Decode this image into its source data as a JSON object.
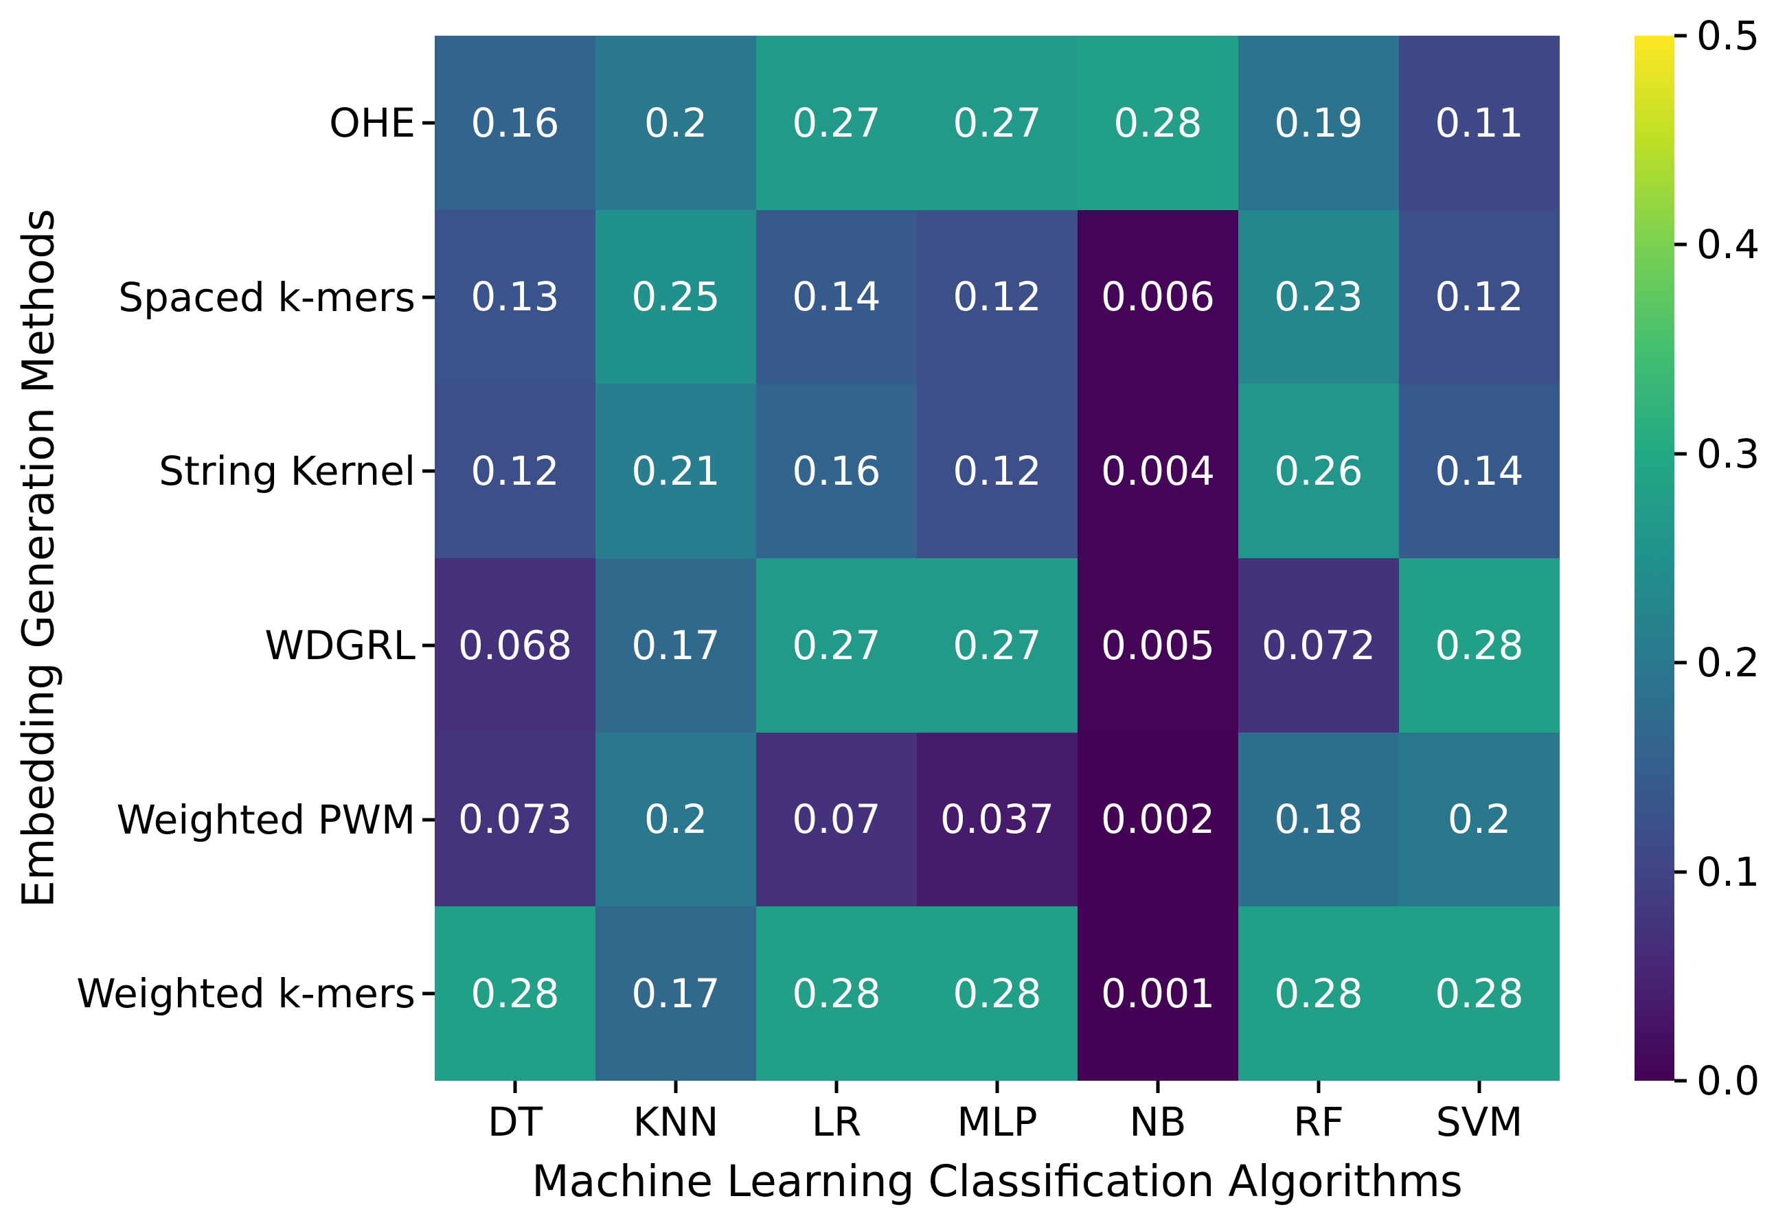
{
  "chart_data": {
    "type": "heatmap",
    "xlabel": "Machine Learning Classification Algorithms",
    "ylabel": "Embedding Generation Methods",
    "columns": [
      "DT",
      "KNN",
      "LR",
      "MLP",
      "NB",
      "RF",
      "SVM"
    ],
    "rows": [
      "OHE",
      "Spaced k-mers",
      "String Kernel",
      "WDGRL",
      "Weighted PWM",
      "Weighted k-mers"
    ],
    "values": [
      [
        0.16,
        0.2,
        0.27,
        0.27,
        0.28,
        0.19,
        0.11
      ],
      [
        0.13,
        0.25,
        0.14,
        0.12,
        0.006,
        0.23,
        0.12
      ],
      [
        0.12,
        0.21,
        0.16,
        0.12,
        0.004,
        0.26,
        0.14
      ],
      [
        0.068,
        0.17,
        0.27,
        0.27,
        0.005,
        0.072,
        0.28
      ],
      [
        0.073,
        0.2,
        0.07,
        0.037,
        0.002,
        0.18,
        0.2
      ],
      [
        0.28,
        0.17,
        0.28,
        0.28,
        0.001,
        0.28,
        0.28
      ]
    ],
    "value_format": "2 significant digits",
    "vmin": 0.0,
    "vmax": 0.5,
    "colorbar_ticks": [
      "0.5",
      "0.4",
      "0.3",
      "0.2",
      "0.1",
      "0.0"
    ],
    "annotation_text_color": "#ffffff",
    "grid": false,
    "legend_position": "colorbar-right",
    "colormap": {
      "name": "viridis",
      "stops": [
        "#440154",
        "#482475",
        "#414487",
        "#355f8d",
        "#2a788e",
        "#21918c",
        "#22a884",
        "#44bf70",
        "#7ad151",
        "#bddf26",
        "#fde725"
      ]
    }
  }
}
